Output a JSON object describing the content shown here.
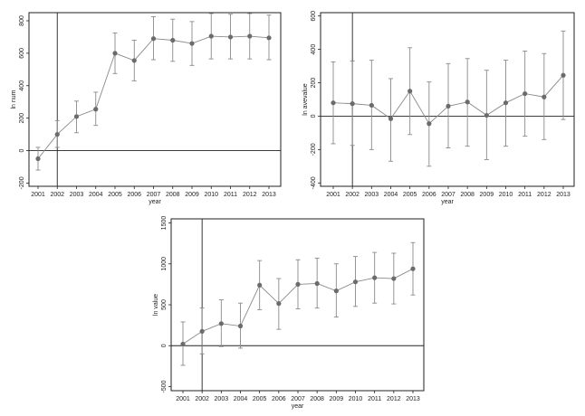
{
  "chart_data": [
    {
      "type": "line",
      "xlabel": "year",
      "ylabel": "ln num",
      "x": [
        "2001",
        "2002",
        "2003",
        "2004",
        "2005",
        "2006",
        "2007",
        "2008",
        "2009",
        "2010",
        "2011",
        "2012",
        "2013"
      ],
      "ylim": [
        -220,
        850
      ],
      "yticks": [
        -200,
        0,
        200,
        400,
        600,
        800
      ],
      "reference_line_y": 0,
      "reference_line_x": "2002",
      "series": [
        {
          "values": [
            -50,
            100,
            210,
            255,
            600,
            555,
            690,
            680,
            660,
            705,
            700,
            705,
            695
          ],
          "ci_low": [
            -120,
            20,
            110,
            155,
            475,
            430,
            560,
            550,
            525,
            565,
            565,
            565,
            560
          ],
          "ci_high": [
            20,
            185,
            305,
            360,
            725,
            680,
            825,
            810,
            795,
            845,
            840,
            845,
            835
          ]
        }
      ],
      "marker_color": "#6b6b6b",
      "line_color": "#8a8a8a"
    },
    {
      "type": "line",
      "xlabel": "year",
      "ylabel": "ln avevalue",
      "x": [
        "2001",
        "2002",
        "2003",
        "2004",
        "2005",
        "2006",
        "2007",
        "2008",
        "2009",
        "2010",
        "2011",
        "2012",
        "2013"
      ],
      "ylim": [
        -420,
        620
      ],
      "yticks": [
        -400,
        -200,
        0,
        200,
        400,
        600
      ],
      "reference_line_y": 0,
      "reference_line_x": "2002",
      "series": [
        {
          "values": [
            80,
            75,
            65,
            -15,
            150,
            -45,
            60,
            85,
            5,
            80,
            135,
            115,
            245
          ],
          "ci_low": [
            -165,
            -175,
            -200,
            -270,
            -110,
            -300,
            -190,
            -180,
            -260,
            -180,
            -120,
            -140,
            -20
          ],
          "ci_high": [
            325,
            330,
            335,
            225,
            410,
            205,
            315,
            345,
            275,
            335,
            390,
            375,
            510
          ]
        }
      ],
      "marker_color": "#6b6b6b",
      "line_color": "#8a8a8a"
    },
    {
      "type": "line",
      "xlabel": "year",
      "ylabel": "ln value",
      "x": [
        "2001",
        "2002",
        "2003",
        "2004",
        "2005",
        "2006",
        "2007",
        "2008",
        "2009",
        "2010",
        "2011",
        "2012",
        "2013"
      ],
      "ylim": [
        -550,
        1550
      ],
      "yticks": [
        -500,
        0,
        500,
        1000,
        1500
      ],
      "reference_line_y": 0,
      "reference_line_x": "2002",
      "series": [
        {
          "values": [
            20,
            175,
            270,
            240,
            740,
            515,
            750,
            760,
            670,
            780,
            830,
            820,
            940
          ],
          "ci_low": [
            -240,
            -100,
            -10,
            -30,
            440,
            200,
            450,
            460,
            350,
            480,
            520,
            510,
            620
          ],
          "ci_high": [
            290,
            460,
            560,
            520,
            1040,
            820,
            1050,
            1070,
            1000,
            1090,
            1140,
            1130,
            1260
          ]
        }
      ],
      "marker_color": "#6b6b6b",
      "line_color": "#8a8a8a"
    }
  ]
}
